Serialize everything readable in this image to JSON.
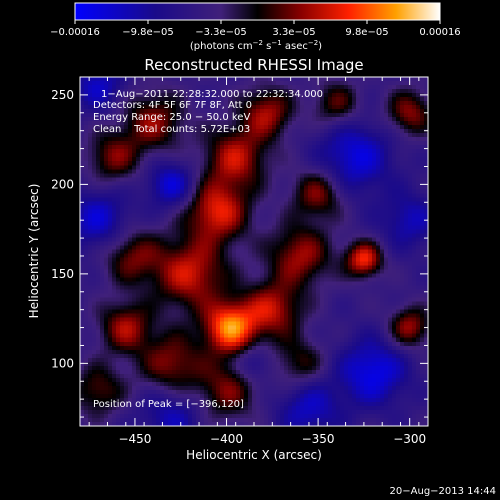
{
  "chart_data": {
    "type": "heatmap",
    "title": "Reconstructed RHESSI Image",
    "xlabel": "Heliocentric X (arcsec)",
    "ylabel": "Heliocentric Y (arcsec)",
    "xlim": [
      -480,
      -290
    ],
    "ylim": [
      65,
      260
    ],
    "x_ticks": [
      -450,
      -400,
      -350,
      -300
    ],
    "x_tick_labels": [
      "−450",
      "−400",
      "−350",
      "−300"
    ],
    "y_ticks": [
      100,
      150,
      200,
      250
    ],
    "y_tick_labels": [
      "100",
      "150",
      "200",
      "250"
    ],
    "colorbar": {
      "range": [
        -0.00016,
        0.00016
      ],
      "tick_labels": [
        "−0.00016",
        "−9.8e−05",
        "−3.3e−05",
        "3.3e−05",
        "9.8e−05",
        "0.00016"
      ],
      "units_prefix": "(photons cm",
      "units_exp1": "−2",
      "units_mid": " s",
      "units_exp2": "−1",
      "units_mid2": " asec",
      "units_exp3": "−2",
      "units_suffix": ")"
    },
    "annotations": [
      "1−Aug−2011 22:28:32.000 to 22:32:34.000",
      "Detectors: 4F 5F 6F 7F 8F, Att 0",
      "Energy Range: 25.0 − 50.0 keV",
      "Clean    Total counts: 5.72E+03"
    ],
    "peak_label": "Position of Peak = [−396,120]",
    "peak": [
      -396,
      120
    ],
    "sources": [
      {
        "x": -398,
        "y": 120,
        "amp": 1.0,
        "w": 10
      },
      {
        "x": -420,
        "y": 150,
        "amp": 0.7,
        "w": 14
      },
      {
        "x": -405,
        "y": 185,
        "amp": 0.75,
        "w": 12
      },
      {
        "x": -395,
        "y": 215,
        "amp": 0.65,
        "w": 12
      },
      {
        "x": -378,
        "y": 240,
        "amp": 0.6,
        "w": 10
      },
      {
        "x": -440,
        "y": 235,
        "amp": 0.55,
        "w": 12
      },
      {
        "x": -462,
        "y": 215,
        "amp": 0.5,
        "w": 10
      },
      {
        "x": -452,
        "y": 160,
        "amp": 0.5,
        "w": 11
      },
      {
        "x": -455,
        "y": 120,
        "amp": 0.6,
        "w": 10
      },
      {
        "x": -430,
        "y": 100,
        "amp": 0.55,
        "w": 12
      },
      {
        "x": -375,
        "y": 130,
        "amp": 0.65,
        "w": 11
      },
      {
        "x": -360,
        "y": 160,
        "amp": 0.6,
        "w": 12
      },
      {
        "x": -350,
        "y": 195,
        "amp": 0.55,
        "w": 10
      },
      {
        "x": -325,
        "y": 158,
        "amp": 0.8,
        "w": 7
      },
      {
        "x": -300,
        "y": 120,
        "amp": 0.6,
        "w": 8
      },
      {
        "x": -300,
        "y": 240,
        "amp": 0.55,
        "w": 9
      },
      {
        "x": -400,
        "y": 85,
        "amp": 0.5,
        "w": 12
      },
      {
        "x": -470,
        "y": 85,
        "amp": 0.45,
        "w": 10
      },
      {
        "x": -340,
        "y": 245,
        "amp": 0.45,
        "w": 9
      },
      {
        "x": -360,
        "y": 100,
        "amp": 0.4,
        "w": 10
      },
      {
        "x": -330,
        "y": 215,
        "amp": -0.55,
        "w": 14
      },
      {
        "x": -320,
        "y": 95,
        "amp": -0.6,
        "w": 13
      },
      {
        "x": -470,
        "y": 180,
        "amp": -0.5,
        "w": 12
      },
      {
        "x": -430,
        "y": 200,
        "amp": -0.55,
        "w": 9
      },
      {
        "x": -470,
        "y": 255,
        "amp": -0.45,
        "w": 10
      },
      {
        "x": -430,
        "y": 70,
        "amp": -0.4,
        "w": 12
      },
      {
        "x": -355,
        "y": 75,
        "amp": -0.45,
        "w": 12
      },
      {
        "x": -300,
        "y": 180,
        "amp": -0.4,
        "w": 11
      },
      {
        "x": -385,
        "y": 100,
        "amp": -0.35,
        "w": 7
      }
    ]
  },
  "footer": {
    "date": "20−Aug−2013 14:44"
  }
}
